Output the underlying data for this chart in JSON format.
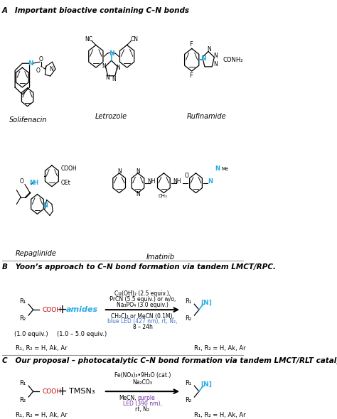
{
  "title_A": "A   Important bioactive containing C–N bonds",
  "title_B": "B   Yoon’s approach to C–N bond formation via tandem LMCT/RPC.",
  "title_C": "C   Our proposal – photocatalytic C–N bond formation via tandem LMCT/RLT catalysis",
  "drug_names": [
    "Solifenacin",
    "Letrozole",
    "Rufinamide",
    "Repaglinide",
    "Imatinib"
  ],
  "section_B_amides": "amides",
  "section_B_equiv1": "(1.0 equiv.)",
  "section_B_equiv2": "(1.0 – 5.0 equiv.)",
  "section_B_r1r2": "R₁, R₂ = H, Ak, Ar",
  "section_C_tmsn3": "TMSN₃",
  "section_C_r1r2": "R₁, R₂ = H, Ak, Ar",
  "bg_color": "#ffffff",
  "cyan_color": "#29ABE2",
  "blue_color": "#4472C4",
  "purple_color": "#7030A0",
  "black": "#000000",
  "red_color": "#C00000",
  "section_line_color": "#999999"
}
